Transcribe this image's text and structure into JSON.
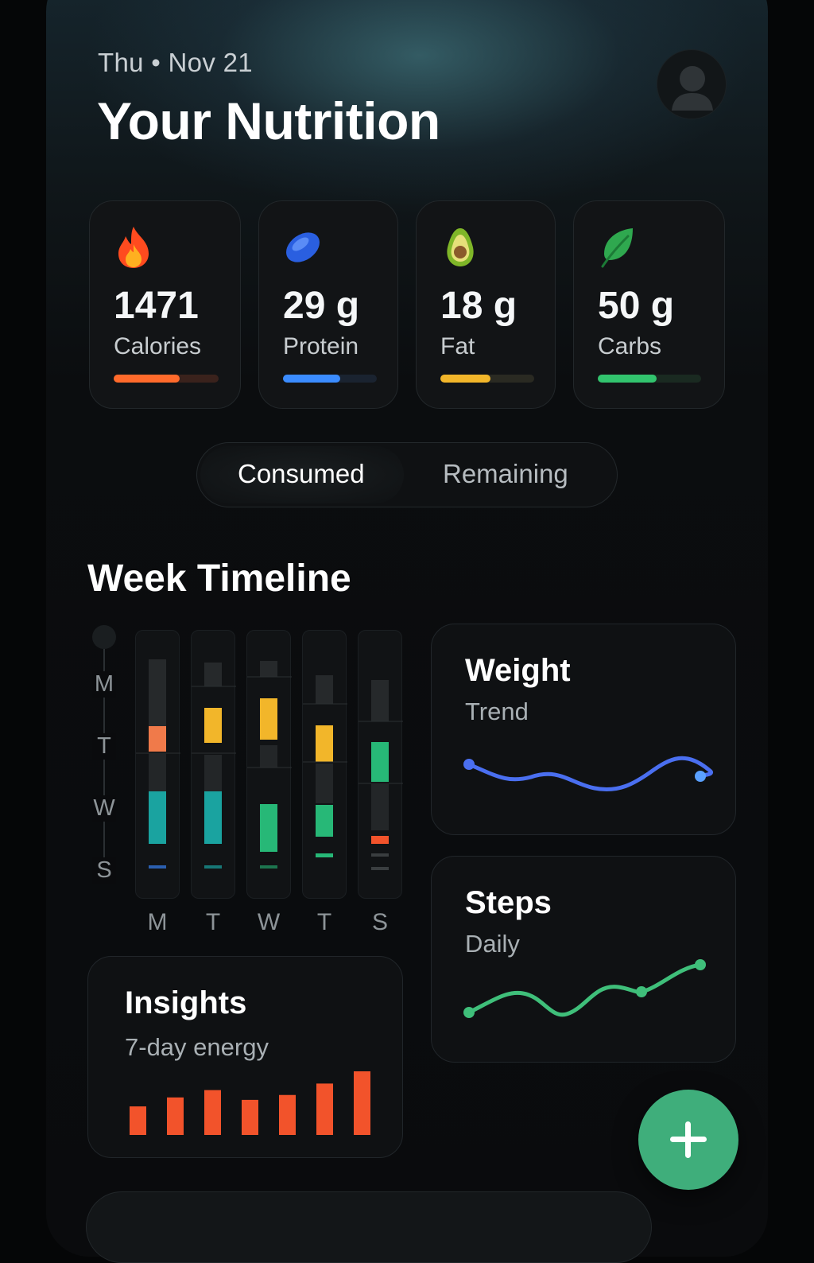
{
  "header": {
    "date": "Thu • Nov 21",
    "title": "Your Nutrition"
  },
  "stats": [
    {
      "icon": "flame-icon",
      "value": "1471",
      "label": "Calories",
      "progress": 0.63,
      "color": "#ff6a2b",
      "track": "#3a221c"
    },
    {
      "icon": "bean-icon",
      "value": "29 g",
      "label": "Protein",
      "progress": 0.61,
      "color": "#3b8cff",
      "track": "#1a2330"
    },
    {
      "icon": "avocado-icon",
      "value": "18 g",
      "label": "Fat",
      "progress": 0.53,
      "color": "#f2b62a",
      "track": "#2a2a22"
    },
    {
      "icon": "leaf-icon",
      "value": "50 g",
      "label": "Carbs",
      "progress": 0.57,
      "color": "#32c46e",
      "track": "#1a2a21"
    }
  ],
  "toggle": {
    "consumed": "Consumed",
    "remaining": "Remaining",
    "selected": "Consumed"
  },
  "week_timeline": {
    "title": "Week Timeline",
    "row_labels": [
      "M",
      "T",
      "W",
      "S"
    ],
    "col_labels": [
      "M",
      "T",
      "W",
      "T",
      "S"
    ]
  },
  "weight": {
    "title": "Weight",
    "subtitle": "Trend",
    "color": "#4a6ff0"
  },
  "steps": {
    "title": "Steps",
    "subtitle": "Daily",
    "color": "#3fbf7a"
  },
  "insights": {
    "title": "Insights",
    "subtitle": "7-day energy",
    "chart_data": {
      "type": "bar",
      "values": [
        35,
        46,
        55,
        43,
        49,
        63,
        78
      ],
      "color": "#f2532b"
    }
  }
}
